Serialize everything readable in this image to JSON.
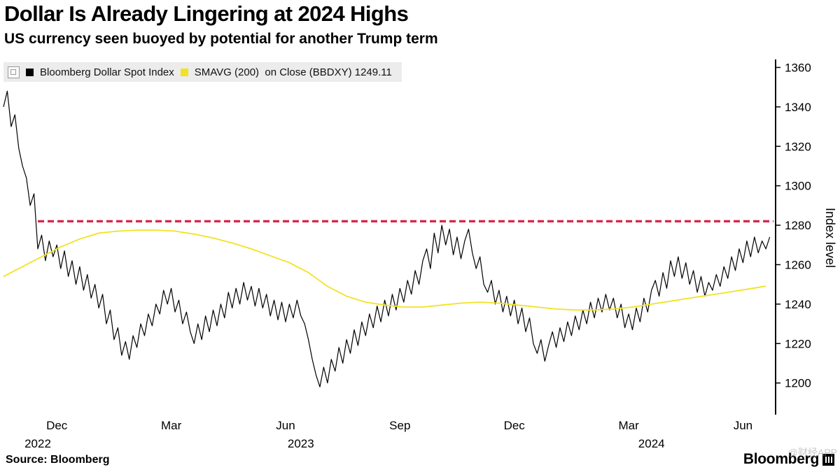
{
  "header": {
    "title": "Dollar Is Already Lingering at 2024 Highs",
    "subtitle": "US currency seen buoyed by potential for another Trump term"
  },
  "legend": {
    "series": [
      {
        "label": "Bloomberg Dollar Spot Index",
        "color": "#000000"
      },
      {
        "label": "SMAVG (200)  on Close (BBDXY) 1249.11",
        "color": "#f2e224"
      }
    ]
  },
  "footer": {
    "source": "Source: Bloomberg",
    "brand": "Bloomberg",
    "watermark": "@财经APP"
  },
  "chart_data": {
    "type": "line",
    "title": "Dollar Is Already Lingering at 2024 Highs",
    "subtitle": "US currency seen buoyed by potential for another Trump term",
    "ylabel": "Index level",
    "grid": false,
    "legend_position": "top-left",
    "x_axis": {
      "range": [
        0.1,
        20.3
      ],
      "unit": "months (0 = mid-Oct 2022)",
      "ticks": [
        {
          "label": "Dec",
          "m": 1.5
        },
        {
          "label": "Mar",
          "m": 4.5
        },
        {
          "label": "Jun",
          "m": 7.5
        },
        {
          "label": "Sep",
          "m": 10.5
        },
        {
          "label": "Dec",
          "m": 13.5
        },
        {
          "label": "Mar",
          "m": 16.5
        },
        {
          "label": "Jun",
          "m": 19.5
        }
      ],
      "years": [
        {
          "label": "2022",
          "m": 1.0
        },
        {
          "label": "2023",
          "m": 7.9
        },
        {
          "label": "2024",
          "m": 17.1
        }
      ]
    },
    "y_axis": {
      "range": [
        1185,
        1363
      ],
      "ticks": [
        1200,
        1220,
        1240,
        1260,
        1280,
        1300,
        1320,
        1340,
        1360
      ]
    },
    "reference_line": {
      "value": 1282,
      "x_start": 1.0,
      "color": "#d5294d",
      "style": "dashed",
      "width": 3.4
    },
    "series": [
      {
        "name": "Bloomberg Dollar Spot Index",
        "color": "#000000",
        "width": 1.2,
        "x_start": 0.1,
        "x_step": 0.1,
        "values": [
          1340,
          1348,
          1330,
          1336,
          1319,
          1310,
          1304,
          1290,
          1296,
          1268,
          1275,
          1262,
          1272,
          1264,
          1270,
          1258,
          1267,
          1254,
          1262,
          1250,
          1259,
          1247,
          1255,
          1243,
          1250,
          1238,
          1245,
          1230,
          1237,
          1222,
          1228,
          1214,
          1221,
          1212,
          1224,
          1218,
          1230,
          1224,
          1235,
          1229,
          1240,
          1235,
          1247,
          1240,
          1248,
          1236,
          1242,
          1230,
          1236,
          1226,
          1220,
          1230,
          1222,
          1234,
          1226,
          1237,
          1229,
          1240,
          1233,
          1246,
          1238,
          1248,
          1240,
          1251,
          1242,
          1249,
          1239,
          1248,
          1238,
          1245,
          1234,
          1242,
          1232,
          1241,
          1231,
          1240,
          1233,
          1242,
          1234,
          1230,
          1222,
          1212,
          1204,
          1198,
          1208,
          1200,
          1212,
          1206,
          1218,
          1210,
          1222,
          1215,
          1227,
          1219,
          1231,
          1224,
          1235,
          1228,
          1239,
          1231,
          1242,
          1234,
          1245,
          1237,
          1248,
          1241,
          1252,
          1245,
          1257,
          1250,
          1262,
          1268,
          1258,
          1276,
          1266,
          1280,
          1270,
          1278,
          1265,
          1274,
          1263,
          1272,
          1278,
          1266,
          1258,
          1264,
          1250,
          1246,
          1252,
          1240,
          1247,
          1236,
          1244,
          1234,
          1242,
          1230,
          1238,
          1226,
          1233,
          1220,
          1215,
          1222,
          1211,
          1219,
          1226,
          1218,
          1228,
          1221,
          1231,
          1224,
          1234,
          1227,
          1237,
          1230,
          1241,
          1233,
          1243,
          1236,
          1245,
          1237,
          1243,
          1233,
          1240,
          1228,
          1235,
          1227,
          1238,
          1231,
          1243,
          1236,
          1247,
          1252,
          1244,
          1256,
          1248,
          1262,
          1254,
          1264,
          1253,
          1261,
          1250,
          1257,
          1246,
          1254,
          1244,
          1251,
          1247,
          1255,
          1249,
          1259,
          1253,
          1264,
          1257,
          1268,
          1261,
          1272,
          1264,
          1274,
          1266,
          1272,
          1268,
          1274
        ]
      },
      {
        "name": "SMAVG (200) on Close (BBDXY)",
        "color": "#f2e224",
        "width": 1.8,
        "x_start": 0.1,
        "x_step": 0.5,
        "last_value": 1249.11,
        "values": [
          1254,
          1259,
          1264,
          1269,
          1273,
          1276,
          1277,
          1277.5,
          1277.5,
          1277,
          1275.5,
          1273.5,
          1271,
          1268,
          1264.5,
          1261,
          1256,
          1249,
          1244,
          1241,
          1239.5,
          1238.5,
          1238.5,
          1239.5,
          1240.5,
          1241,
          1240.5,
          1239.5,
          1238.5,
          1237.5,
          1237,
          1237,
          1237.5,
          1238.5,
          1240,
          1241.5,
          1243,
          1244.5,
          1246,
          1247.5,
          1249.1
        ]
      }
    ]
  }
}
